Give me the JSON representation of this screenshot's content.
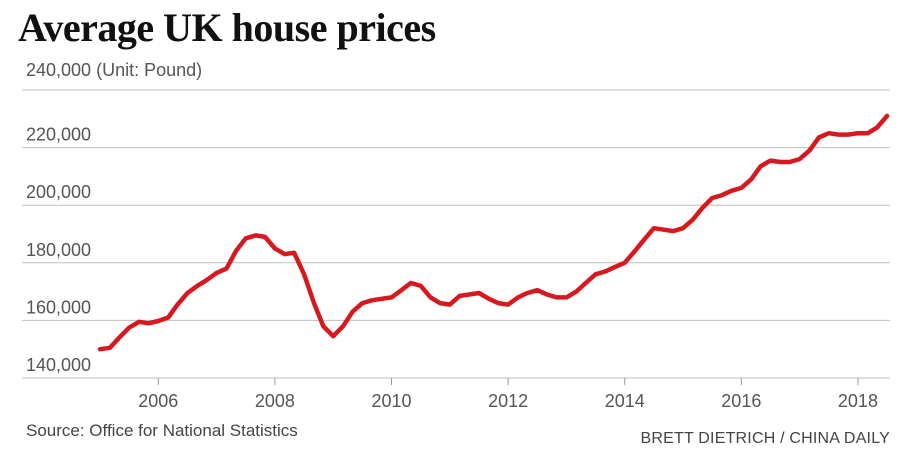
{
  "chart_data": {
    "type": "line",
    "title": "Average UK house prices",
    "unit_note": "(Unit: Pound)",
    "source": "Source: Office for National Statistics",
    "credit": "BRETT DIETRICH  / CHINA DAILY",
    "xlabel": "",
    "ylabel": "",
    "xlim": [
      2005.0,
      2018.55
    ],
    "ylim": [
      140000,
      240000
    ],
    "x_ticks": [
      2006,
      2008,
      2010,
      2012,
      2014,
      2016,
      2018
    ],
    "y_ticks": [
      140000,
      160000,
      180000,
      200000,
      220000,
      240000
    ],
    "y_tick_labels": [
      "140,000",
      "160,000",
      "180,000",
      "200,000",
      "220,000",
      "240,000"
    ],
    "grid": "horizontal",
    "line_color": "#d7191f",
    "grid_color": "#bfbfbf",
    "series": [
      {
        "x": [
          2005.0,
          2005.17,
          2005.33,
          2005.5,
          2005.67,
          2005.83,
          2006.0,
          2006.17,
          2006.33,
          2006.5,
          2006.67,
          2006.83,
          2007.0,
          2007.17,
          2007.33,
          2007.5,
          2007.67,
          2007.83,
          2008.0,
          2008.17,
          2008.33,
          2008.5,
          2008.67,
          2008.83,
          2009.0,
          2009.17,
          2009.33,
          2009.5,
          2009.67,
          2009.83,
          2010.0,
          2010.17,
          2010.33,
          2010.5,
          2010.67,
          2010.83,
          2011.0,
          2011.17,
          2011.33,
          2011.5,
          2011.67,
          2011.83,
          2012.0,
          2012.17,
          2012.33,
          2012.5,
          2012.67,
          2012.83,
          2013.0,
          2013.17,
          2013.33,
          2013.5,
          2013.67,
          2013.83,
          2014.0,
          2014.17,
          2014.33,
          2014.5,
          2014.67,
          2014.83,
          2015.0,
          2015.17,
          2015.33,
          2015.5,
          2015.67,
          2015.83,
          2016.0,
          2016.17,
          2016.33,
          2016.5,
          2016.67,
          2016.83,
          2017.0,
          2017.17,
          2017.33,
          2017.5,
          2017.67,
          2017.83,
          2018.0,
          2018.17,
          2018.33,
          2018.5
        ],
        "values": [
          150000,
          150500,
          154000,
          157500,
          159500,
          159000,
          159800,
          161000,
          165500,
          169500,
          172000,
          174000,
          176500,
          178000,
          184000,
          188500,
          189500,
          189000,
          185000,
          183000,
          183500,
          176000,
          166000,
          158000,
          154500,
          158000,
          163000,
          166000,
          167000,
          167500,
          168000,
          170500,
          173000,
          172000,
          168000,
          166000,
          165500,
          168500,
          169000,
          169500,
          167500,
          166000,
          165500,
          168000,
          169500,
          170500,
          169000,
          168000,
          168000,
          170000,
          173000,
          176000,
          177000,
          178500,
          180000,
          184000,
          188000,
          192000,
          191500,
          191000,
          192000,
          195000,
          199000,
          202500,
          203500,
          205000,
          206000,
          209000,
          213500,
          215500,
          215000,
          215000,
          216000,
          219000,
          223500,
          225000,
          224500,
          224500,
          225000,
          225000,
          227000,
          231000
        ]
      }
    ]
  }
}
